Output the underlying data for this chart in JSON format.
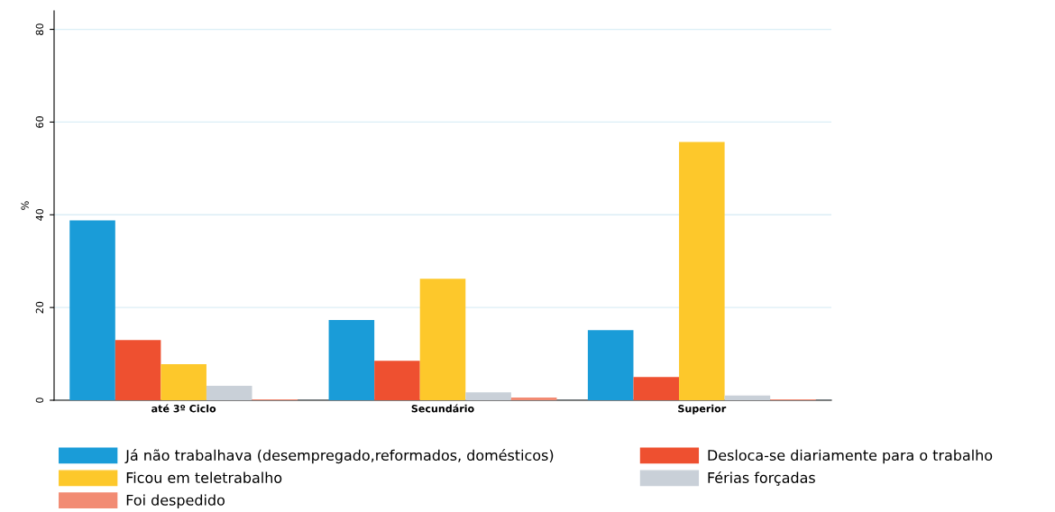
{
  "chart_data": {
    "type": "bar",
    "ylabel": "%",
    "categories": [
      "até 3º Ciclo",
      "Secundário",
      "Superior"
    ],
    "series": [
      {
        "name": "Já não trabalhava (desempregado,reformados, domésticos)",
        "color": "#1a9cd8",
        "values": [
          38.8,
          17.3,
          15.1
        ]
      },
      {
        "name": "Desloca-se diariamente para o trabalho",
        "color": "#ee5030",
        "values": [
          13.0,
          8.5,
          5.0
        ]
      },
      {
        "name": "Ficou em teletrabalho",
        "color": "#fdc82b",
        "values": [
          7.8,
          26.2,
          55.7
        ]
      },
      {
        "name": "Férias forçadas",
        "color": "#c9d0d8",
        "values": [
          3.1,
          1.7,
          1.0
        ]
      },
      {
        "name": "Foi despedido",
        "color": "#f28b73",
        "values": [
          0.2,
          0.6,
          0.2
        ]
      }
    ],
    "ylim": [
      0,
      84
    ],
    "yticks": [
      0,
      20,
      40,
      60,
      80
    ],
    "grid": "y",
    "legend": "bottom"
  }
}
